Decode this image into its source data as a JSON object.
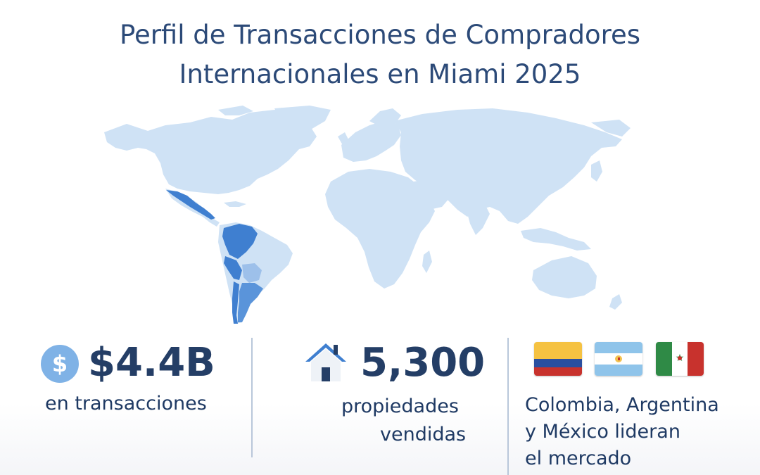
{
  "title": {
    "line1": "Perfil de Transacciones de Compradores",
    "line2": "Internacionales en Miami 2025"
  },
  "colors": {
    "land": "#cfe2f5",
    "highlight_dark": "#3f7fd0",
    "highlight_mid": "#5a94da",
    "highlight_light": "#9dc0ea",
    "text": "#243e66",
    "icon_circle": "#7fb2e6"
  },
  "map": {
    "icon": "world-map",
    "highlighted_countries": [
      "Mexico",
      "Colombia",
      "Argentina"
    ]
  },
  "stats": {
    "transactions": {
      "icon": "dollar-icon",
      "value": "$4.4B",
      "label": "en transacciones"
    },
    "properties": {
      "icon": "house-icon",
      "value": "5,300",
      "label_line1": "propiedades",
      "label_line2": "vendidas"
    },
    "leaders": {
      "flags": [
        "colombia-flag",
        "argentina-flag",
        "mexico-flag"
      ],
      "line1": "Colombia, Argentina",
      "line2": "y México lideran",
      "line3": "el mercado"
    }
  }
}
